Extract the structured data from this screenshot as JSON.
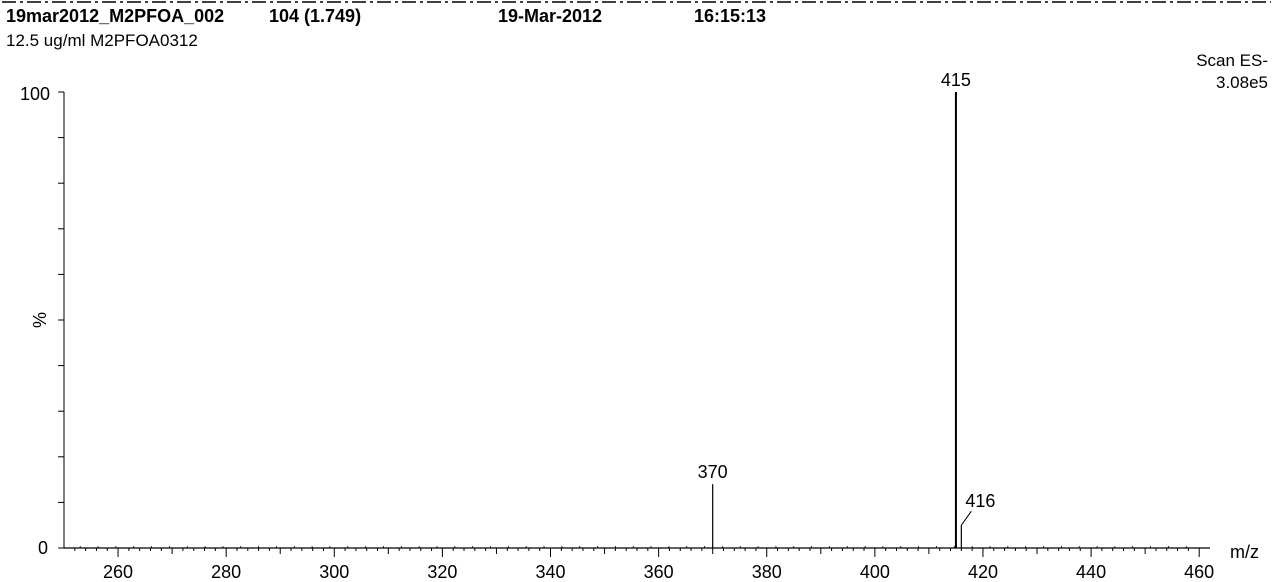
{
  "header": {
    "sample_id": "19mar2012_M2PFOA_002",
    "scan_info": "104 (1.749)",
    "date": "19-Mar-2012",
    "time": "16:15:13",
    "description": "12.5 ug/ml M2PFOA0312",
    "scan_mode": "Scan ES-",
    "intensity": "3.08e5"
  },
  "chart_data": {
    "type": "bar",
    "xlabel": "m/z",
    "ylabel": "%",
    "xlim": [
      250,
      462
    ],
    "ylim": [
      0,
      100
    ],
    "x_ticks": [
      "260",
      "280",
      "300",
      "320",
      "340",
      "360",
      "380",
      "400",
      "420",
      "440",
      "460"
    ],
    "y_ticks": [
      "0",
      "100"
    ],
    "peaks": [
      {
        "mz": 370,
        "relative_intensity": 14,
        "label": "370"
      },
      {
        "mz": 415,
        "relative_intensity": 100,
        "label": "415"
      },
      {
        "mz": 416,
        "relative_intensity": 5,
        "label": "416"
      }
    ]
  }
}
